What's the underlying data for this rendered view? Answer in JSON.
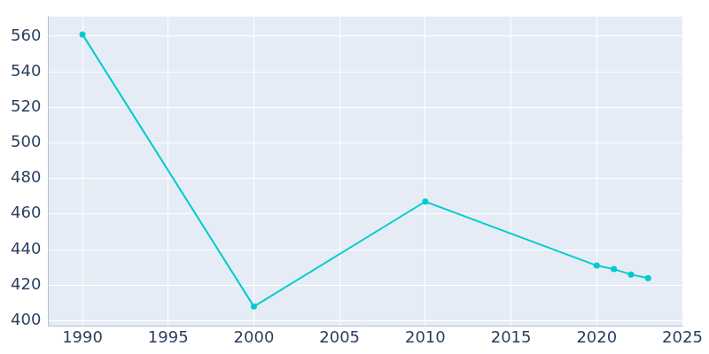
{
  "chart_data": {
    "type": "line",
    "x": [
      1990,
      2000,
      2010,
      2020,
      2021,
      2022,
      2023
    ],
    "values": [
      561,
      408,
      467,
      431,
      429,
      426,
      424
    ],
    "color": "#00cccc",
    "marker": "circle",
    "xlim": [
      1988,
      2025
    ],
    "xticks": [
      1990,
      1995,
      2000,
      2005,
      2010,
      2015,
      2020,
      2025
    ],
    "ylim": [
      397,
      571
    ],
    "yticks": [
      400,
      420,
      440,
      460,
      480,
      500,
      520,
      540,
      560
    ],
    "grid": true
  }
}
